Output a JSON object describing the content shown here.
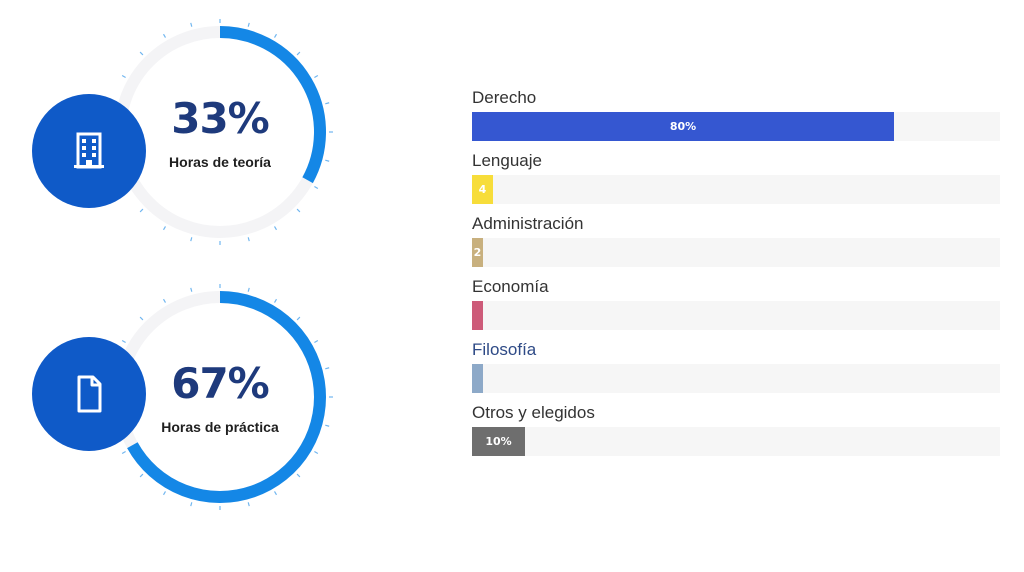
{
  "gauges": [
    {
      "value_label": "33%",
      "fraction": 0.33,
      "caption": "Horas de teoría",
      "icon": "building-icon"
    },
    {
      "value_label": "67%",
      "fraction": 0.67,
      "caption": "Horas de práctica",
      "icon": "document-icon"
    }
  ],
  "colors": {
    "gauge_arc": "#1487e6",
    "gauge_track": "#f4f4f6",
    "gauge_ticks": "#1487e6",
    "badge": "#0f5ac8",
    "big_number": "#1e3a7c"
  },
  "chart_data": {
    "type": "bar",
    "orientation": "horizontal",
    "categories": [
      "Derecho",
      "Lenguaje",
      "Administración",
      "Economía",
      "Filosofía",
      "Otros y elegidos"
    ],
    "values": [
      80,
      4,
      2,
      2,
      2,
      10
    ],
    "value_labels": [
      "80%",
      "4",
      "2",
      "",
      "",
      "10%"
    ],
    "colors": [
      "#3557d1",
      "#f7dd3a",
      "#c8b07e",
      "#cd5b79",
      "#8da9c8",
      "#6e6e6e"
    ],
    "label_colors": [
      "#333333",
      "#333333",
      "#333333",
      "#333333",
      "#2e4a86",
      "#333333"
    ],
    "xlim": [
      0,
      100
    ]
  }
}
